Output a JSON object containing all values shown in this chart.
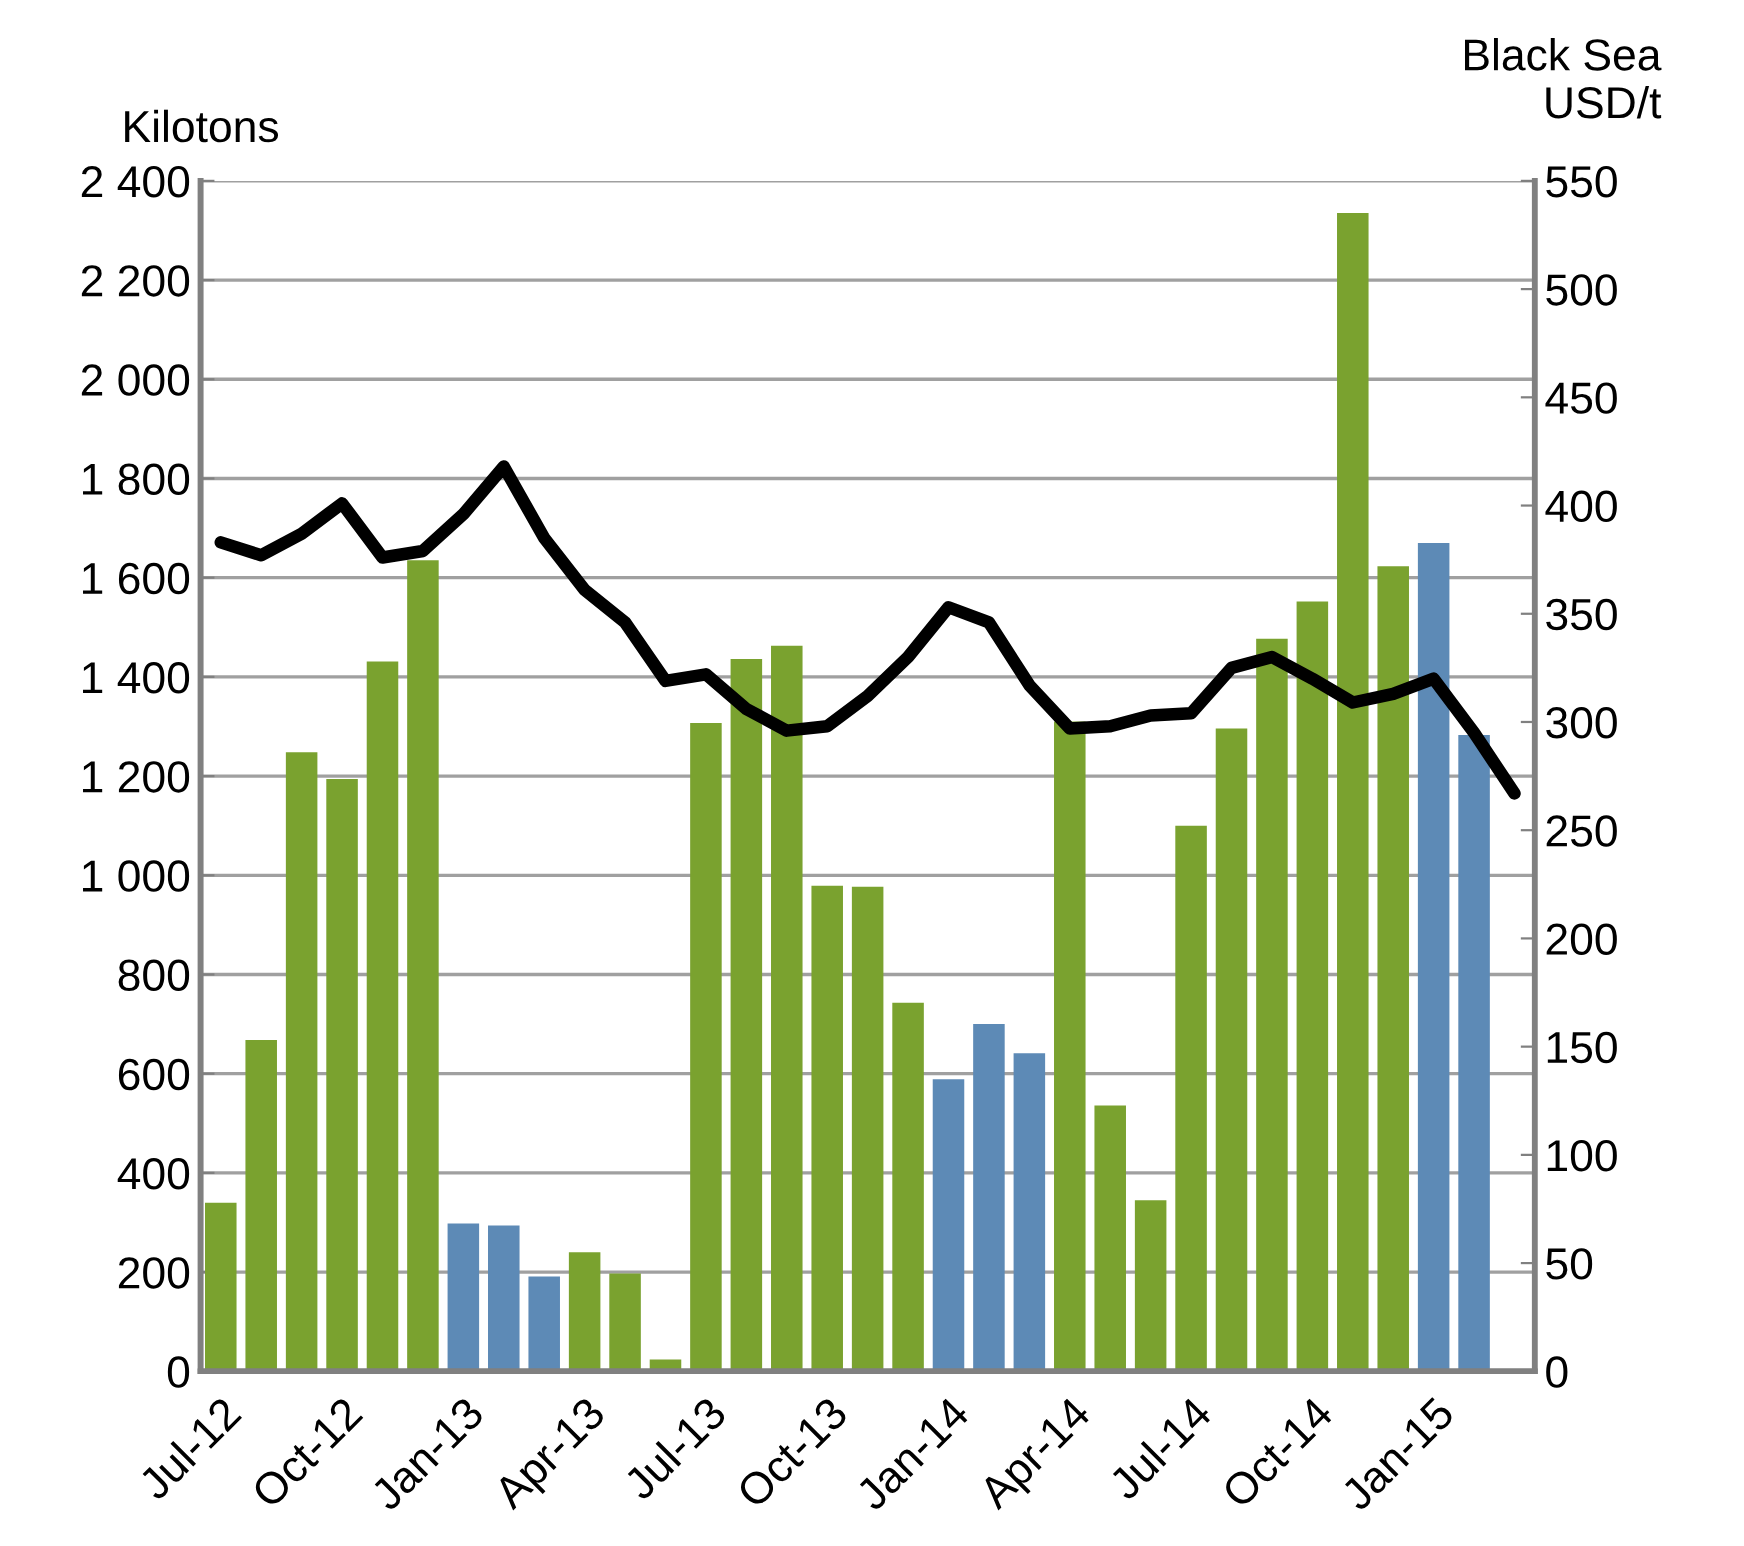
{
  "chart_data": {
    "type": "bar",
    "ylabel": "Kilotons",
    "y2label": "Black Sea\nUSD/t",
    "categories": [
      "Jul-12",
      null,
      null,
      "Oct-12",
      null,
      null,
      "Jan-13",
      null,
      null,
      "Apr-13",
      null,
      null,
      "Jul-13",
      null,
      null,
      "Oct-13",
      null,
      null,
      "Jan-14",
      null,
      null,
      "Apr-14",
      null,
      null,
      "Jul-14",
      null,
      null,
      "Oct-14",
      null,
      null,
      "Jan-15",
      null,
      null
    ],
    "series": [
      {
        "colors": [
          "#7aa22f",
          "#7aa22f",
          "#7aa22f",
          "#7aa22f",
          "#7aa22f",
          "#7aa22f",
          "#5d8ab6",
          "#5d8ab6",
          "#5d8ab6",
          "#7aa22f",
          "#7aa22f",
          "#7aa22f",
          "#7aa22f",
          "#7aa22f",
          "#7aa22f",
          "#7aa22f",
          "#7aa22f",
          "#7aa22f",
          "#5d8ab6",
          "#5d8ab6",
          "#5d8ab6",
          "#7aa22f",
          "#7aa22f",
          "#7aa22f",
          "#7aa22f",
          "#7aa22f",
          "#7aa22f",
          "#7aa22f",
          "#7aa22f",
          "#7aa22f",
          "#5d8ab6",
          "#5d8ab6",
          "#5d8ab6"
        ],
        "values": [
          340,
          668,
          1248,
          1194,
          1431,
          1635,
          298,
          294,
          191,
          240,
          197,
          24,
          1307,
          1436,
          1463,
          979,
          977,
          743,
          589,
          700,
          641,
          1310,
          536,
          345,
          1100,
          1296,
          1477,
          1552,
          2335,
          1623,
          1670,
          1283,
          null
        ]
      },
      {
        "type": "line",
        "axis": "y2",
        "color": "#000000",
        "values": [
          383,
          377,
          387,
          401,
          376,
          379,
          396,
          418,
          385,
          361,
          346,
          319,
          322,
          306,
          296,
          298,
          312,
          330,
          353,
          346,
          317,
          297,
          298,
          303,
          304,
          325,
          330,
          320,
          309,
          313,
          320,
          295,
          267
        ]
      }
    ],
    "ylim": [
      0,
      2400
    ],
    "yticks": [
      0,
      {
        "value": 200,
        "label": "200"
      },
      {
        "value": 400,
        "label": "400"
      },
      {
        "value": 600,
        "label": "600"
      },
      {
        "value": 800,
        "label": "800"
      },
      {
        "value": 1000,
        "label": "1 000"
      },
      {
        "value": 1200,
        "label": "1 200"
      },
      {
        "value": 1400,
        "label": "1 400"
      },
      {
        "value": 1600,
        "label": "1 600"
      },
      {
        "value": 1800,
        "label": "1 800"
      },
      {
        "value": 2000,
        "label": "2 000"
      },
      {
        "value": 2200,
        "label": "2 200"
      },
      {
        "value": 2400,
        "label": "2 400"
      }
    ],
    "y2lim": [
      0,
      550
    ],
    "y2ticks": [
      0,
      50,
      100,
      150,
      200,
      250,
      300,
      350,
      400,
      450,
      500,
      550
    ],
    "grid": "y",
    "legend": false,
    "marker": "none",
    "line_style": "solid"
  }
}
